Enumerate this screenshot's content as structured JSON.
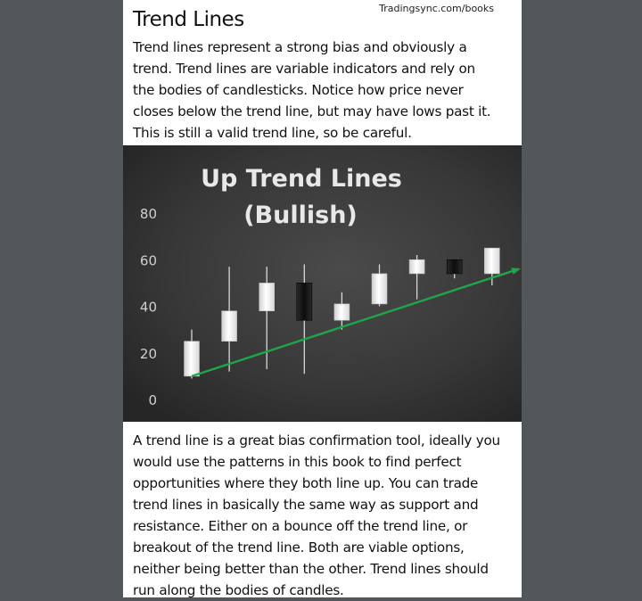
{
  "header": {
    "source": "Tradingsync.com/books",
    "title": "Trend Lines"
  },
  "intro": "Trend lines represent a strong bias and obviously a\ntrend. Trend lines are variable indicators and rely on\nthe bodies of candlesticks. Notice how price never\ncloses below the trend line, but may have lows past it.\nThis is still a valid trend line, so be careful.",
  "body": "A trend line is a great bias confirmation tool, ideally you\nwould use the patterns in this book to find  perfect\nopportunities where they both line up. You can trade\ntrend lines in basically the same way as support and\nresistance. Either on a bounce off the trend line, or\nbreakout of the trend line. Both are viable options,\nneither being better than the other. Trend lines should\nrun along the bodies of candles.",
  "colors": {
    "trend_line": "#1fa64a",
    "bullish_candle": "#f2f2f2",
    "bearish_candle": "#161616"
  },
  "chart_data": {
    "type": "candlestick",
    "title_line1": "Up Trend Lines",
    "title_line2": "(Bullish)",
    "ylim": [
      0,
      80
    ],
    "yticks": [
      "80",
      "60",
      "40",
      "20",
      "0"
    ],
    "grid": false,
    "candles": [
      {
        "open": 10,
        "close": 25,
        "high": 30,
        "low": 9
      },
      {
        "open": 25,
        "close": 38,
        "high": 57,
        "low": 12
      },
      {
        "open": 38,
        "close": 50,
        "high": 57,
        "low": 13
      },
      {
        "open": 50,
        "close": 34,
        "high": 58,
        "low": 11
      },
      {
        "open": 34,
        "close": 41,
        "high": 46,
        "low": 30
      },
      {
        "open": 41,
        "close": 54,
        "high": 58,
        "low": 40
      },
      {
        "open": 54,
        "close": 60,
        "high": 62,
        "low": 43
      },
      {
        "open": 60,
        "close": 54,
        "high": 60,
        "low": 52
      },
      {
        "open": 54,
        "close": 65,
        "high": 65,
        "low": 49
      }
    ],
    "trend_line": {
      "start": {
        "index": 0,
        "value": 10
      },
      "end": {
        "index": 9,
        "value": 56
      }
    }
  }
}
